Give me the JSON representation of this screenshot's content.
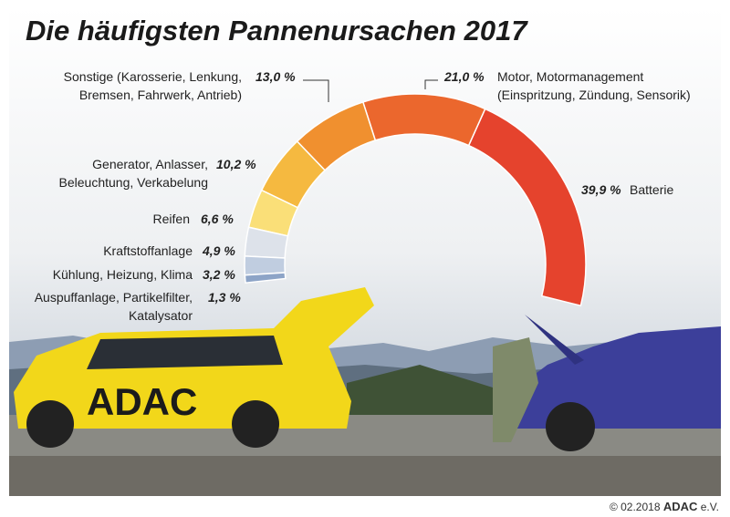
{
  "chart_data": {
    "type": "donut",
    "title": "Die häufigsten Pannenursachen 2017",
    "categories": [
      "Batterie",
      "Motor, Motormanagement\n(Einspritzung, Zündung, Sensorik)",
      "Sonstige (Karosserie, Lenkung,\nBremsen, Fahrwerk, Antrieb)",
      "Generator, Anlasser,\nBeleuchtung, Verkabelung",
      "Reifen",
      "Kraftstoffanlage",
      "Kühlung, Heizung, Klima",
      "Auspuffanlage, Partikelfilter,\nKatalysator"
    ],
    "values": [
      39.9,
      21.0,
      13.0,
      10.2,
      6.6,
      4.9,
      3.2,
      1.3
    ],
    "value_labels": [
      "39,9 %",
      "21,0 %",
      "13,0 %",
      "10,2 %",
      "6,6 %",
      "4,9 %",
      "3,2 %",
      "1,3 %"
    ],
    "colors": [
      "#e5432d",
      "#eb672d",
      "#f0902f",
      "#f5b940",
      "#fadf78",
      "#dde2ea",
      "#c0cde0",
      "#8da4c7"
    ]
  },
  "footer": {
    "copyright": "© 02.2018",
    "brand": "ADAC",
    "suffix": "e.V."
  }
}
